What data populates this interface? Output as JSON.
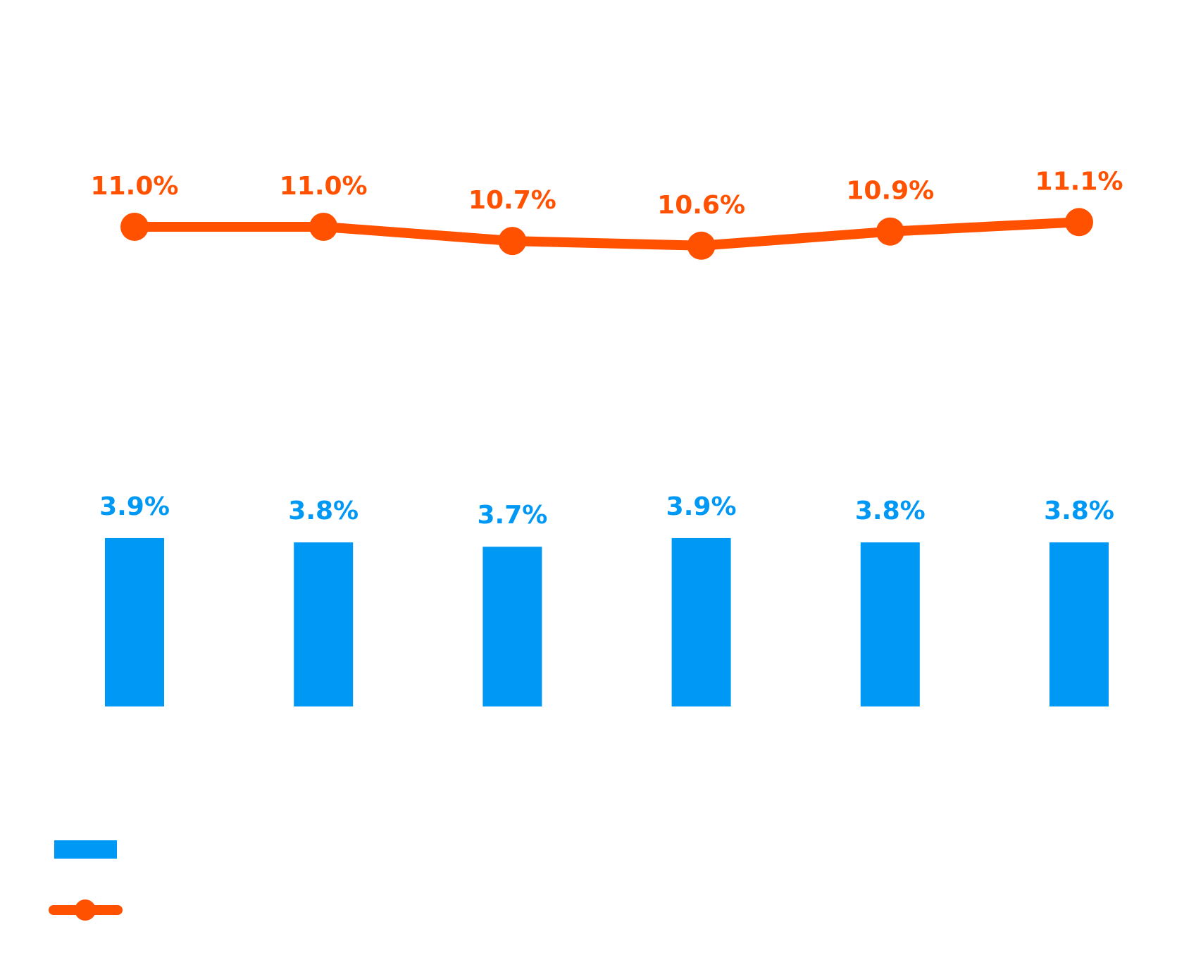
{
  "chart_data": {
    "type": "bar",
    "categories": [
      "",
      "",
      "",
      "",
      "",
      ""
    ],
    "series": [
      {
        "type": "bar",
        "values": [
          3.9,
          3.8,
          3.7,
          3.9,
          3.8,
          3.8
        ],
        "labels": [
          "3.9%",
          "3.8%",
          "3.7%",
          "3.9%",
          "3.8%",
          "3.8%"
        ],
        "color": "#0098F5"
      },
      {
        "type": "line",
        "values": [
          11.0,
          11.0,
          10.7,
          10.6,
          10.9,
          11.1
        ],
        "labels": [
          "11.0%",
          "11.0%",
          "10.7%",
          "10.6%",
          "10.9%",
          "11.1%"
        ],
        "color": "#FF5100"
      }
    ],
    "title": "",
    "xlabel": "",
    "ylabel": "",
    "grid": false,
    "legend_position": "bottom-left"
  }
}
